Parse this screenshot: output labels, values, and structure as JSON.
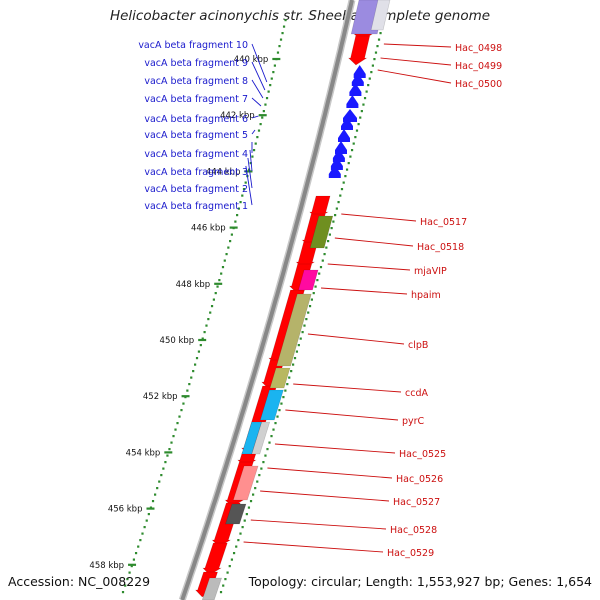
{
  "title": "Helicobacter acinonychis str. Sheeba, complete genome",
  "footer": {
    "accession": "Accession: NC_008229",
    "summary": "Topology: circular; Length: 1,553,927 bp; Genes: 1,654"
  },
  "colors": {
    "backbone": "#888888",
    "tick": "#2e8b2e",
    "left_labels": "#1a1acc",
    "right_labels": "#cc1111",
    "forward_gene": "#ff0000",
    "reverse_feature": "#1a1aff",
    "leader_right": "#cc1111",
    "leader_left": "#1a1acc"
  },
  "scale": {
    "unit": "kbp",
    "ticks": [
      {
        "label": "440 kbp",
        "kbp": 440
      },
      {
        "label": "442 kbp",
        "kbp": 442
      },
      {
        "label": "444 kbp",
        "kbp": 444
      },
      {
        "label": "446 kbp",
        "kbp": 446
      },
      {
        "label": "448 kbp",
        "kbp": 448
      },
      {
        "label": "450 kbp",
        "kbp": 450
      },
      {
        "label": "452 kbp",
        "kbp": 452
      },
      {
        "label": "454 kbp",
        "kbp": 454
      },
      {
        "label": "456 kbp",
        "kbp": 456
      },
      {
        "label": "458 kbp",
        "kbp": 458
      }
    ]
  },
  "left_labels": [
    "vacA beta fragment 10",
    "vacA beta fragment 9",
    "vacA beta fragment 8",
    "vacA beta fragment 7",
    "vacA beta fragment 6",
    "vacA beta fragment 5",
    "vacA beta fragment 4",
    "vacA beta fragment 3",
    "vacA beta fragment 2",
    "vacA beta fragment 1"
  ],
  "right_labels": [
    "Hac_0498",
    "Hac_0499",
    "Hac_0500",
    "Hac_0517",
    "Hac_0518",
    "mjaVIP",
    "hpaim",
    "clpB",
    "ccdA",
    "pyrC",
    "Hac_0525",
    "Hac_0526",
    "Hac_0527",
    "Hac_0528",
    "Hac_0529"
  ]
}
